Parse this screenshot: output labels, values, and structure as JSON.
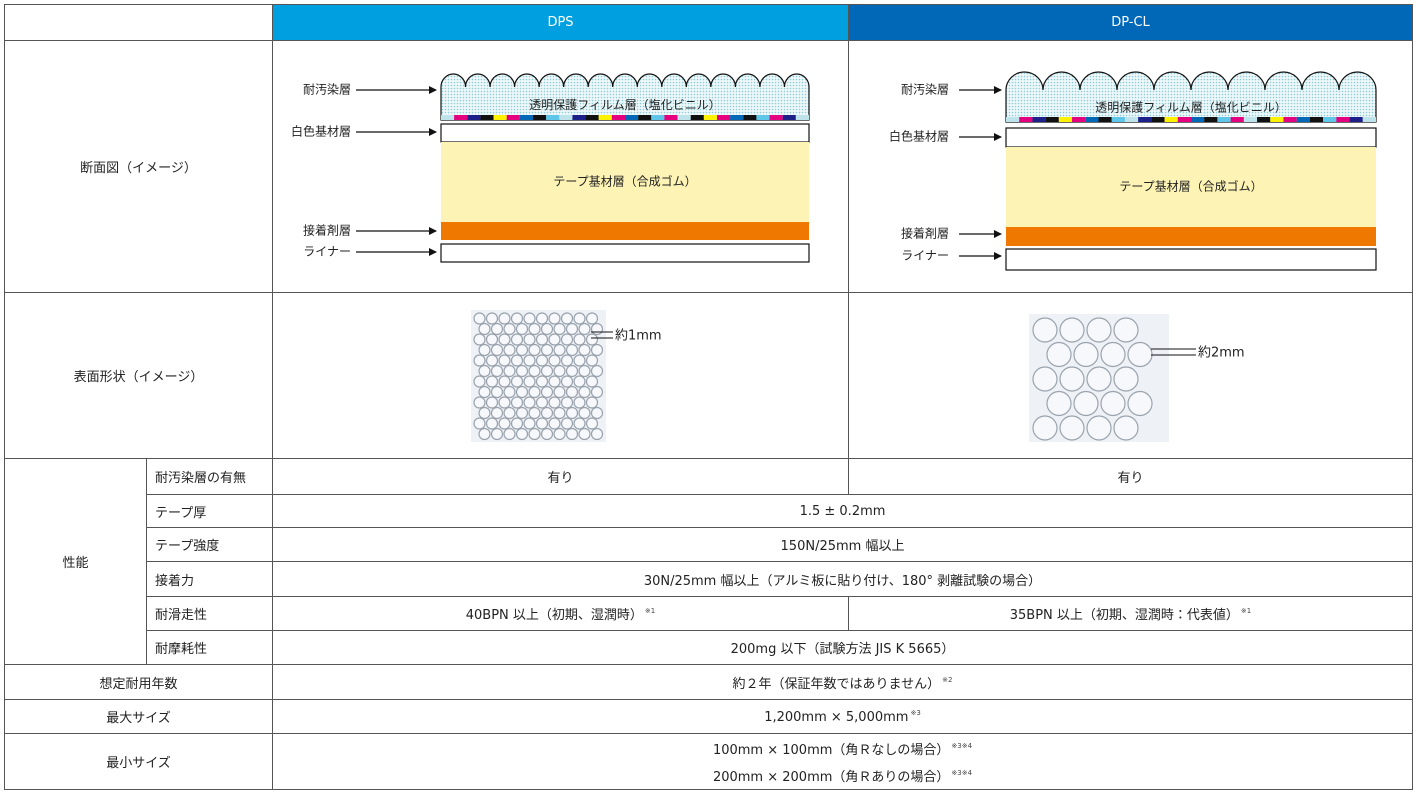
{
  "header": {
    "dps": "DPS",
    "dpcl": "DP-CL"
  },
  "cross_section": {
    "label": "断面図（イメージ）",
    "dps": {
      "antifouling": "耐汚染層",
      "film": "透明保護フィルム層（塩化ビニル）",
      "white_base": "白色基材層",
      "tape_base": "テープ基材層（合成ゴム）",
      "adhesive": "接着剤層",
      "liner": "ライナー"
    },
    "dpcl": {
      "antifouling": "耐汚染層",
      "film": "透明保護フィルム層（塩化ビニル）",
      "white_base": "白色基材層",
      "tape_base": "テープ基材層（合成ゴム）",
      "adhesive": "接着剤層",
      "liner": "ライナー"
    }
  },
  "surface": {
    "label": "表面形状（イメージ）",
    "dps": "約1mm",
    "dpcl": "約2mm"
  },
  "performance": {
    "label": "性能",
    "rows": [
      {
        "name": "耐汚染層の有無",
        "dps": "有り",
        "dpcl": "有り"
      },
      {
        "name": "テープ厚",
        "both": "1.5 ± 0.2mm"
      },
      {
        "name": "テープ強度",
        "both": "150N/25mm 幅以上"
      },
      {
        "name": "接着力",
        "both": "30N/25mm 幅以上（アルミ板に貼り付け、180° 剥離試験の場合）"
      },
      {
        "name": "耐滑走性",
        "dps": "40BPN 以上（初期、湿潤時）",
        "dps_note": "※1",
        "dpcl": "35BPN 以上（初期、湿潤時：代表値）",
        "dpcl_note": "※1"
      },
      {
        "name": "耐摩耗性",
        "both": "200mg 以下（試験方法 JIS K 5665）"
      }
    ]
  },
  "lifetime": {
    "label": "想定耐用年数",
    "value": "約２年（保証年数ではありません）",
    "note": "※2"
  },
  "max_size": {
    "label": "最大サイズ",
    "value": "1,200mm × 5,000mm",
    "note": "※3"
  },
  "min_size": {
    "label": "最小サイズ",
    "lines": [
      {
        "value": "100mm × 100mm（角Ｒなしの場合）",
        "note": "※3※4"
      },
      {
        "value": "200mm × 200mm（角Ｒありの場合）",
        "note": "※3※4"
      }
    ]
  }
}
